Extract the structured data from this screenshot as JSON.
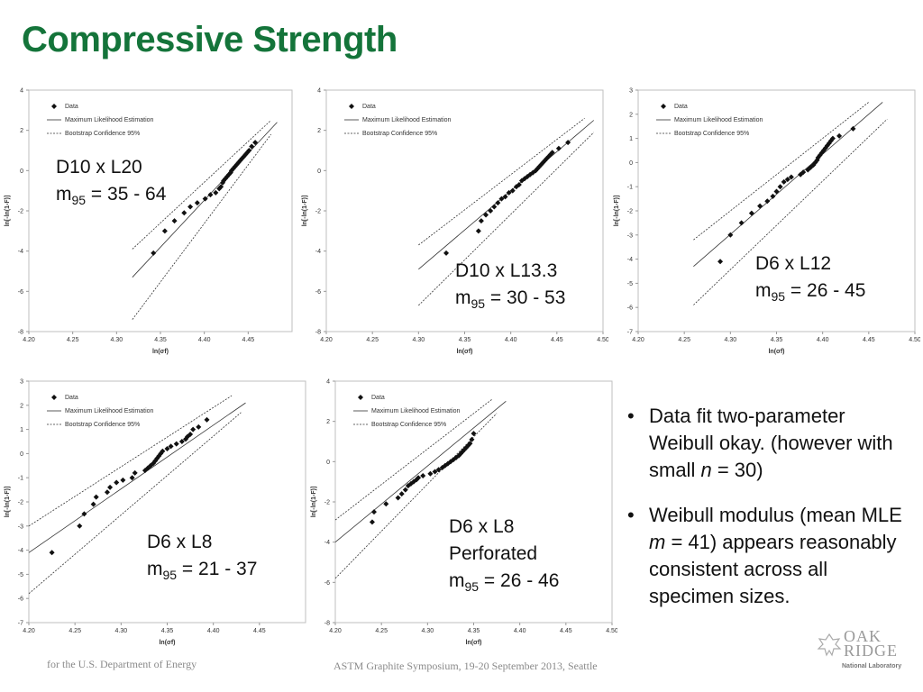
{
  "slide_title": "Compressive Strength",
  "legend": {
    "data": "Data",
    "mle": "Maximum Likelihood Estimation",
    "ci": "Bootstrap Confidence 95%"
  },
  "axes": {
    "xlabel": "ln(σf)",
    "ylabel": "ln[-ln(1-F)]"
  },
  "bullets": [
    {
      "parts": [
        "Data fit two-parameter Weibull okay. (however with small ",
        "n",
        " = 30)"
      ]
    },
    {
      "parts": [
        "Weibull modulus (mean MLE ",
        "m",
        " = 41) appears reasonably consistent across all specimen sizes."
      ]
    }
  ],
  "footer": {
    "left": "for the U.S. Department of Energy",
    "center": "ASTM Graphite Symposium, 19-20 September 2013, Seattle"
  },
  "logo": {
    "line1": "OAK",
    "line2": "RIDGE",
    "line3": "National Laboratory"
  },
  "chart_data": [
    {
      "type": "scatter",
      "label_lines": [
        "D10 x L20",
        "m95 = 35 - 64"
      ],
      "xlim": [
        4.2,
        4.5
      ],
      "ylim": [
        -8,
        4
      ],
      "xticks": [
        4.2,
        4.25,
        4.3,
        4.35,
        4.4,
        4.45
      ],
      "yticks": [
        4,
        2,
        0,
        -2,
        -4,
        -6,
        -8
      ],
      "points_x": [
        4.342,
        4.355,
        4.366,
        4.377,
        4.384,
        4.392,
        4.401,
        4.407,
        4.413,
        4.417,
        4.419,
        4.421,
        4.422,
        4.424,
        4.426,
        4.428,
        4.43,
        4.431,
        4.433,
        4.435,
        4.437,
        4.439,
        4.441,
        4.443,
        4.445,
        4.447,
        4.449,
        4.451,
        4.454,
        4.458
      ],
      "points_y": [
        -4.1,
        -3.0,
        -2.5,
        -2.1,
        -1.8,
        -1.6,
        -1.4,
        -1.2,
        -1.1,
        -0.9,
        -0.8,
        -0.6,
        -0.5,
        -0.4,
        -0.3,
        -0.2,
        -0.1,
        0.0,
        0.1,
        0.2,
        0.3,
        0.4,
        0.5,
        0.6,
        0.7,
        0.8,
        0.9,
        1.0,
        1.2,
        1.4
      ],
      "mle": [
        [
          4.318,
          -5.3
        ],
        [
          4.483,
          2.4
        ]
      ],
      "ci_upper": [
        [
          4.318,
          -3.9
        ],
        [
          4.476,
          2.5
        ]
      ],
      "ci_lower": [
        [
          4.318,
          -7.4
        ],
        [
          4.476,
          1.8
        ]
      ]
    },
    {
      "type": "scatter",
      "label_lines": [
        "D10 x L13.3",
        "m95 = 30 - 53"
      ],
      "xlim": [
        4.2,
        4.5
      ],
      "ylim": [
        -8,
        4
      ],
      "xticks": [
        4.2,
        4.25,
        4.3,
        4.35,
        4.4,
        4.45,
        4.5
      ],
      "yticks": [
        4,
        2,
        0,
        -2,
        -4,
        -6,
        -8
      ],
      "points_x": [
        4.33,
        4.365,
        4.368,
        4.373,
        4.378,
        4.382,
        4.386,
        4.39,
        4.394,
        4.398,
        4.402,
        4.406,
        4.409,
        4.412,
        4.415,
        4.418,
        4.421,
        4.424,
        4.427,
        4.429,
        4.431,
        4.433,
        4.435,
        4.437,
        4.439,
        4.441,
        4.443,
        4.445,
        4.452,
        4.462
      ],
      "points_y": [
        -4.1,
        -3.0,
        -2.5,
        -2.2,
        -2.0,
        -1.8,
        -1.6,
        -1.4,
        -1.3,
        -1.1,
        -1.0,
        -0.8,
        -0.7,
        -0.5,
        -0.4,
        -0.3,
        -0.2,
        -0.1,
        0.0,
        0.1,
        0.2,
        0.3,
        0.4,
        0.5,
        0.6,
        0.7,
        0.8,
        0.9,
        1.1,
        1.4
      ],
      "mle": [
        [
          4.3,
          -4.9
        ],
        [
          4.49,
          2.5
        ]
      ],
      "ci_upper": [
        [
          4.3,
          -3.7
        ],
        [
          4.48,
          2.6
        ]
      ],
      "ci_lower": [
        [
          4.3,
          -6.7
        ],
        [
          4.49,
          1.9
        ]
      ]
    },
    {
      "type": "scatter",
      "label_lines": [
        "D6 x L12",
        "m95 = 26 - 45"
      ],
      "xlim": [
        4.2,
        4.5
      ],
      "ylim": [
        -7,
        3
      ],
      "xticks": [
        4.2,
        4.25,
        4.3,
        4.35,
        4.4,
        4.45,
        4.5
      ],
      "yticks": [
        3,
        2,
        1,
        0,
        -1,
        -2,
        -3,
        -4,
        -5,
        -6,
        -7
      ],
      "points_x": [
        4.289,
        4.3,
        4.312,
        4.323,
        4.332,
        4.34,
        4.346,
        4.35,
        4.354,
        4.358,
        4.362,
        4.366,
        4.376,
        4.379,
        4.384,
        4.387,
        4.39,
        4.392,
        4.394,
        4.395,
        4.397,
        4.399,
        4.401,
        4.403,
        4.405,
        4.407,
        4.409,
        4.411,
        4.418,
        4.433
      ],
      "points_y": [
        -4.1,
        -3.0,
        -2.5,
        -2.1,
        -1.8,
        -1.6,
        -1.4,
        -1.2,
        -1.0,
        -0.8,
        -0.7,
        -0.6,
        -0.5,
        -0.4,
        -0.3,
        -0.2,
        -0.1,
        0.0,
        0.1,
        0.2,
        0.3,
        0.4,
        0.5,
        0.6,
        0.7,
        0.8,
        0.9,
        1.0,
        1.1,
        1.4
      ],
      "mle": [
        [
          4.26,
          -4.3
        ],
        [
          4.465,
          2.5
        ]
      ],
      "ci_upper": [
        [
          4.26,
          -3.2
        ],
        [
          4.45,
          2.5
        ]
      ],
      "ci_lower": [
        [
          4.26,
          -5.9
        ],
        [
          4.47,
          1.8
        ]
      ]
    },
    {
      "type": "scatter",
      "label_lines": [
        "D6 x L8",
        "m95 = 21 - 37"
      ],
      "xlim": [
        4.2,
        4.5
      ],
      "ylim": [
        -7,
        3
      ],
      "xticks": [
        4.2,
        4.25,
        4.3,
        4.35,
        4.4,
        4.45
      ],
      "yticks": [
        3,
        2,
        1,
        0,
        -1,
        -2,
        -3,
        -4,
        -5,
        -6,
        -7
      ],
      "points_x": [
        4.225,
        4.255,
        4.26,
        4.27,
        4.273,
        4.285,
        4.288,
        4.295,
        4.302,
        4.312,
        4.315,
        4.326,
        4.329,
        4.332,
        4.335,
        4.337,
        4.339,
        4.341,
        4.343,
        4.345,
        4.35,
        4.354,
        4.36,
        4.366,
        4.37,
        4.372,
        4.375,
        4.378,
        4.384,
        4.393
      ],
      "points_y": [
        -4.1,
        -3.0,
        -2.5,
        -2.1,
        -1.8,
        -1.6,
        -1.4,
        -1.2,
        -1.1,
        -1.0,
        -0.8,
        -0.7,
        -0.6,
        -0.5,
        -0.4,
        -0.3,
        -0.2,
        -0.1,
        0.0,
        0.1,
        0.2,
        0.3,
        0.4,
        0.5,
        0.6,
        0.7,
        0.8,
        1.0,
        1.1,
        1.4
      ],
      "mle": [
        [
          4.2,
          -4.1
        ],
        [
          4.435,
          2.1
        ]
      ],
      "ci_upper": [
        [
          4.2,
          -3.0
        ],
        [
          4.42,
          2.4
        ]
      ],
      "ci_lower": [
        [
          4.2,
          -5.8
        ],
        [
          4.43,
          1.7
        ]
      ]
    },
    {
      "type": "scatter",
      "label_lines": [
        "D6 x L8",
        "Perforated",
        "m95 = 26 - 46"
      ],
      "xlim": [
        4.2,
        4.5
      ],
      "ylim": [
        -8,
        4
      ],
      "xticks": [
        4.2,
        4.25,
        4.3,
        4.35,
        4.4,
        4.45,
        4.5
      ],
      "yticks": [
        4,
        2,
        0,
        -2,
        -4,
        -6,
        -8
      ],
      "points_x": [
        4.24,
        4.242,
        4.255,
        4.268,
        4.272,
        4.276,
        4.279,
        4.282,
        4.285,
        4.288,
        4.29,
        4.295,
        4.303,
        4.308,
        4.312,
        4.316,
        4.319,
        4.322,
        4.325,
        4.328,
        4.331,
        4.334,
        4.336,
        4.338,
        4.34,
        4.342,
        4.344,
        4.346,
        4.348,
        4.35
      ],
      "points_y": [
        -3.0,
        -2.5,
        -2.1,
        -1.8,
        -1.6,
        -1.4,
        -1.2,
        -1.1,
        -1.0,
        -0.9,
        -0.8,
        -0.7,
        -0.6,
        -0.5,
        -0.4,
        -0.3,
        -0.2,
        -0.1,
        0.0,
        0.1,
        0.2,
        0.3,
        0.4,
        0.5,
        0.6,
        0.7,
        0.8,
        0.9,
        1.1,
        1.4
      ],
      "mle": [
        [
          4.2,
          -4.0
        ],
        [
          4.385,
          3.0
        ]
      ],
      "ci_upper": [
        [
          4.2,
          -2.9
        ],
        [
          4.37,
          3.1
        ]
      ],
      "ci_lower": [
        [
          4.2,
          -5.8
        ],
        [
          4.375,
          2.4
        ]
      ]
    }
  ]
}
